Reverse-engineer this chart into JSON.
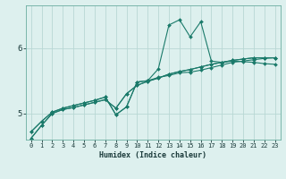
{
  "xlabel": "Humidex (Indice chaleur)",
  "ylabel": "",
  "bg_color": "#ddf0ee",
  "grid_color": "#b8d8d4",
  "line_color": "#1a7a6a",
  "xlim": [
    -0.5,
    23.5
  ],
  "ylim": [
    4.6,
    6.65
  ],
  "yticks": [
    5,
    6
  ],
  "xticks": [
    0,
    1,
    2,
    3,
    4,
    5,
    6,
    7,
    8,
    9,
    10,
    11,
    12,
    13,
    14,
    15,
    16,
    17,
    18,
    19,
    20,
    21,
    22,
    23
  ],
  "series": [
    [
      4.72,
      4.88,
      5.02,
      5.08,
      5.12,
      5.16,
      5.2,
      5.25,
      4.98,
      5.1,
      5.48,
      5.5,
      5.68,
      6.35,
      6.43,
      6.17,
      6.4,
      5.8,
      5.78,
      5.8,
      5.79,
      5.78,
      5.76,
      5.75
    ],
    [
      4.72,
      4.88,
      5.02,
      5.08,
      5.12,
      5.16,
      5.2,
      5.25,
      4.98,
      5.1,
      5.48,
      5.5,
      5.55,
      5.58,
      5.62,
      5.63,
      5.66,
      5.7,
      5.74,
      5.78,
      5.8,
      5.82,
      5.84,
      5.85
    ],
    [
      4.62,
      4.82,
      5.0,
      5.06,
      5.09,
      5.13,
      5.17,
      5.21,
      5.08,
      5.3,
      5.43,
      5.49,
      5.54,
      5.6,
      5.64,
      5.67,
      5.71,
      5.75,
      5.78,
      5.81,
      5.83,
      5.85,
      5.85,
      5.85
    ],
    [
      4.62,
      4.82,
      5.0,
      5.06,
      5.09,
      5.13,
      5.17,
      5.21,
      5.08,
      5.3,
      5.43,
      5.49,
      5.54,
      5.6,
      5.64,
      5.67,
      5.71,
      5.75,
      5.78,
      5.81,
      5.83,
      5.85,
      5.85,
      5.85
    ]
  ]
}
